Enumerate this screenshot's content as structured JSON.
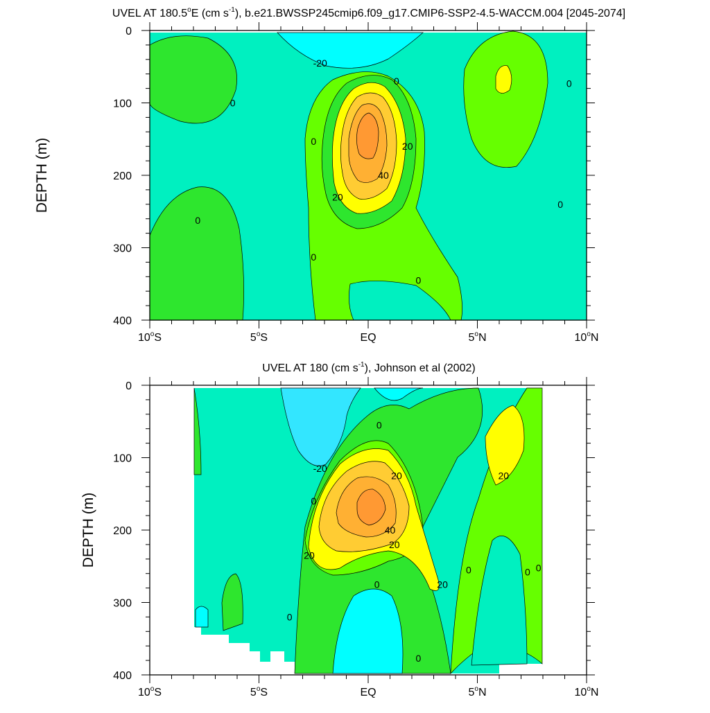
{
  "chart_data": [
    {
      "type": "contour",
      "title_main": "UVEL AT 180.5",
      "title_deg": "o",
      "title_E": "E (cm s",
      "title_exp": "-1",
      "title_rest": "), b.e21.BWSSP245cmip6.f09_g17.CMIP6-SSP2-4.5-WACCM.004 [2045-2074]",
      "ylabel": "DEPTH (m)",
      "xlim": [
        -10,
        10
      ],
      "ylim": [
        0,
        400
      ],
      "y_reversed": true,
      "x_ticks": [
        {
          "value": -10,
          "num": "10",
          "hemi": "S"
        },
        {
          "value": -5,
          "num": "5",
          "hemi": "S"
        },
        {
          "value": 0,
          "num": "EQ",
          "hemi": ""
        },
        {
          "value": 5,
          "num": "5",
          "hemi": "N"
        },
        {
          "value": 10,
          "num": "10",
          "hemi": "N"
        }
      ],
      "y_ticks": [
        "0",
        "100",
        "200",
        "300",
        "400"
      ],
      "contour_labels": [
        {
          "text": "-20",
          "x": -2.2,
          "y": 45
        },
        {
          "text": "0",
          "x": 1.3,
          "y": 70
        },
        {
          "text": "0",
          "x": -6.2,
          "y": 100
        },
        {
          "text": "0",
          "x": 9.2,
          "y": 73
        },
        {
          "text": "0",
          "x": -2.5,
          "y": 153
        },
        {
          "text": "20",
          "x": 1.8,
          "y": 160
        },
        {
          "text": "40",
          "x": 0.7,
          "y": 200
        },
        {
          "text": "20",
          "x": -1.4,
          "y": 230
        },
        {
          "text": "0",
          "x": 8.8,
          "y": 240
        },
        {
          "text": "0",
          "x": -7.8,
          "y": 262
        },
        {
          "text": "0",
          "x": -2.5,
          "y": 313
        },
        {
          "text": "0",
          "x": 2.3,
          "y": 345
        }
      ]
    },
    {
      "type": "contour",
      "title_main": "UVEL AT 180 (cm s",
      "title_exp": "-1",
      "title_rest": "), Johnson et al (2002)",
      "ylabel": "DEPTH (m)",
      "xlim": [
        -10,
        10
      ],
      "ylim": [
        0,
        400
      ],
      "y_reversed": true,
      "x_ticks": [
        {
          "value": -10,
          "num": "10",
          "hemi": "S"
        },
        {
          "value": -5,
          "num": "5",
          "hemi": "S"
        },
        {
          "value": 0,
          "num": "EQ",
          "hemi": ""
        },
        {
          "value": 5,
          "num": "5",
          "hemi": "N"
        },
        {
          "value": 10,
          "num": "10",
          "hemi": "N"
        }
      ],
      "y_ticks": [
        "0",
        "100",
        "200",
        "300",
        "400"
      ],
      "contour_labels": [
        {
          "text": "0",
          "x": 0.5,
          "y": 55
        },
        {
          "text": "-20",
          "x": -2.2,
          "y": 115
        },
        {
          "text": "20",
          "x": 1.3,
          "y": 125
        },
        {
          "text": "20",
          "x": 6.2,
          "y": 125
        },
        {
          "text": "0",
          "x": -2.5,
          "y": 160
        },
        {
          "text": "40",
          "x": 1.0,
          "y": 200
        },
        {
          "text": "20",
          "x": 1.2,
          "y": 220
        },
        {
          "text": "20",
          "x": -2.7,
          "y": 235
        },
        {
          "text": "0",
          "x": 4.6,
          "y": 255
        },
        {
          "text": "0",
          "x": 7.3,
          "y": 258
        },
        {
          "text": "0",
          "x": 7.8,
          "y": 252
        },
        {
          "text": "20",
          "x": 3.4,
          "y": 275
        },
        {
          "text": "0",
          "x": 0.4,
          "y": 275
        },
        {
          "text": "0",
          "x": -3.6,
          "y": 320
        },
        {
          "text": "0",
          "x": 2.3,
          "y": 377
        }
      ]
    }
  ],
  "colors": {
    "level_lt_m20": "#33e6ff",
    "level_m20_0": "#00ffff",
    "level_0_band": "#00f0c0",
    "level_0_20": "#2ee62e",
    "level_0_20_b": "#66ff00",
    "level_20_30": "#ffff00",
    "level_30_40": "#ffcc33",
    "level_40_50": "#ffb033",
    "level_gt_50": "#ff9933"
  }
}
